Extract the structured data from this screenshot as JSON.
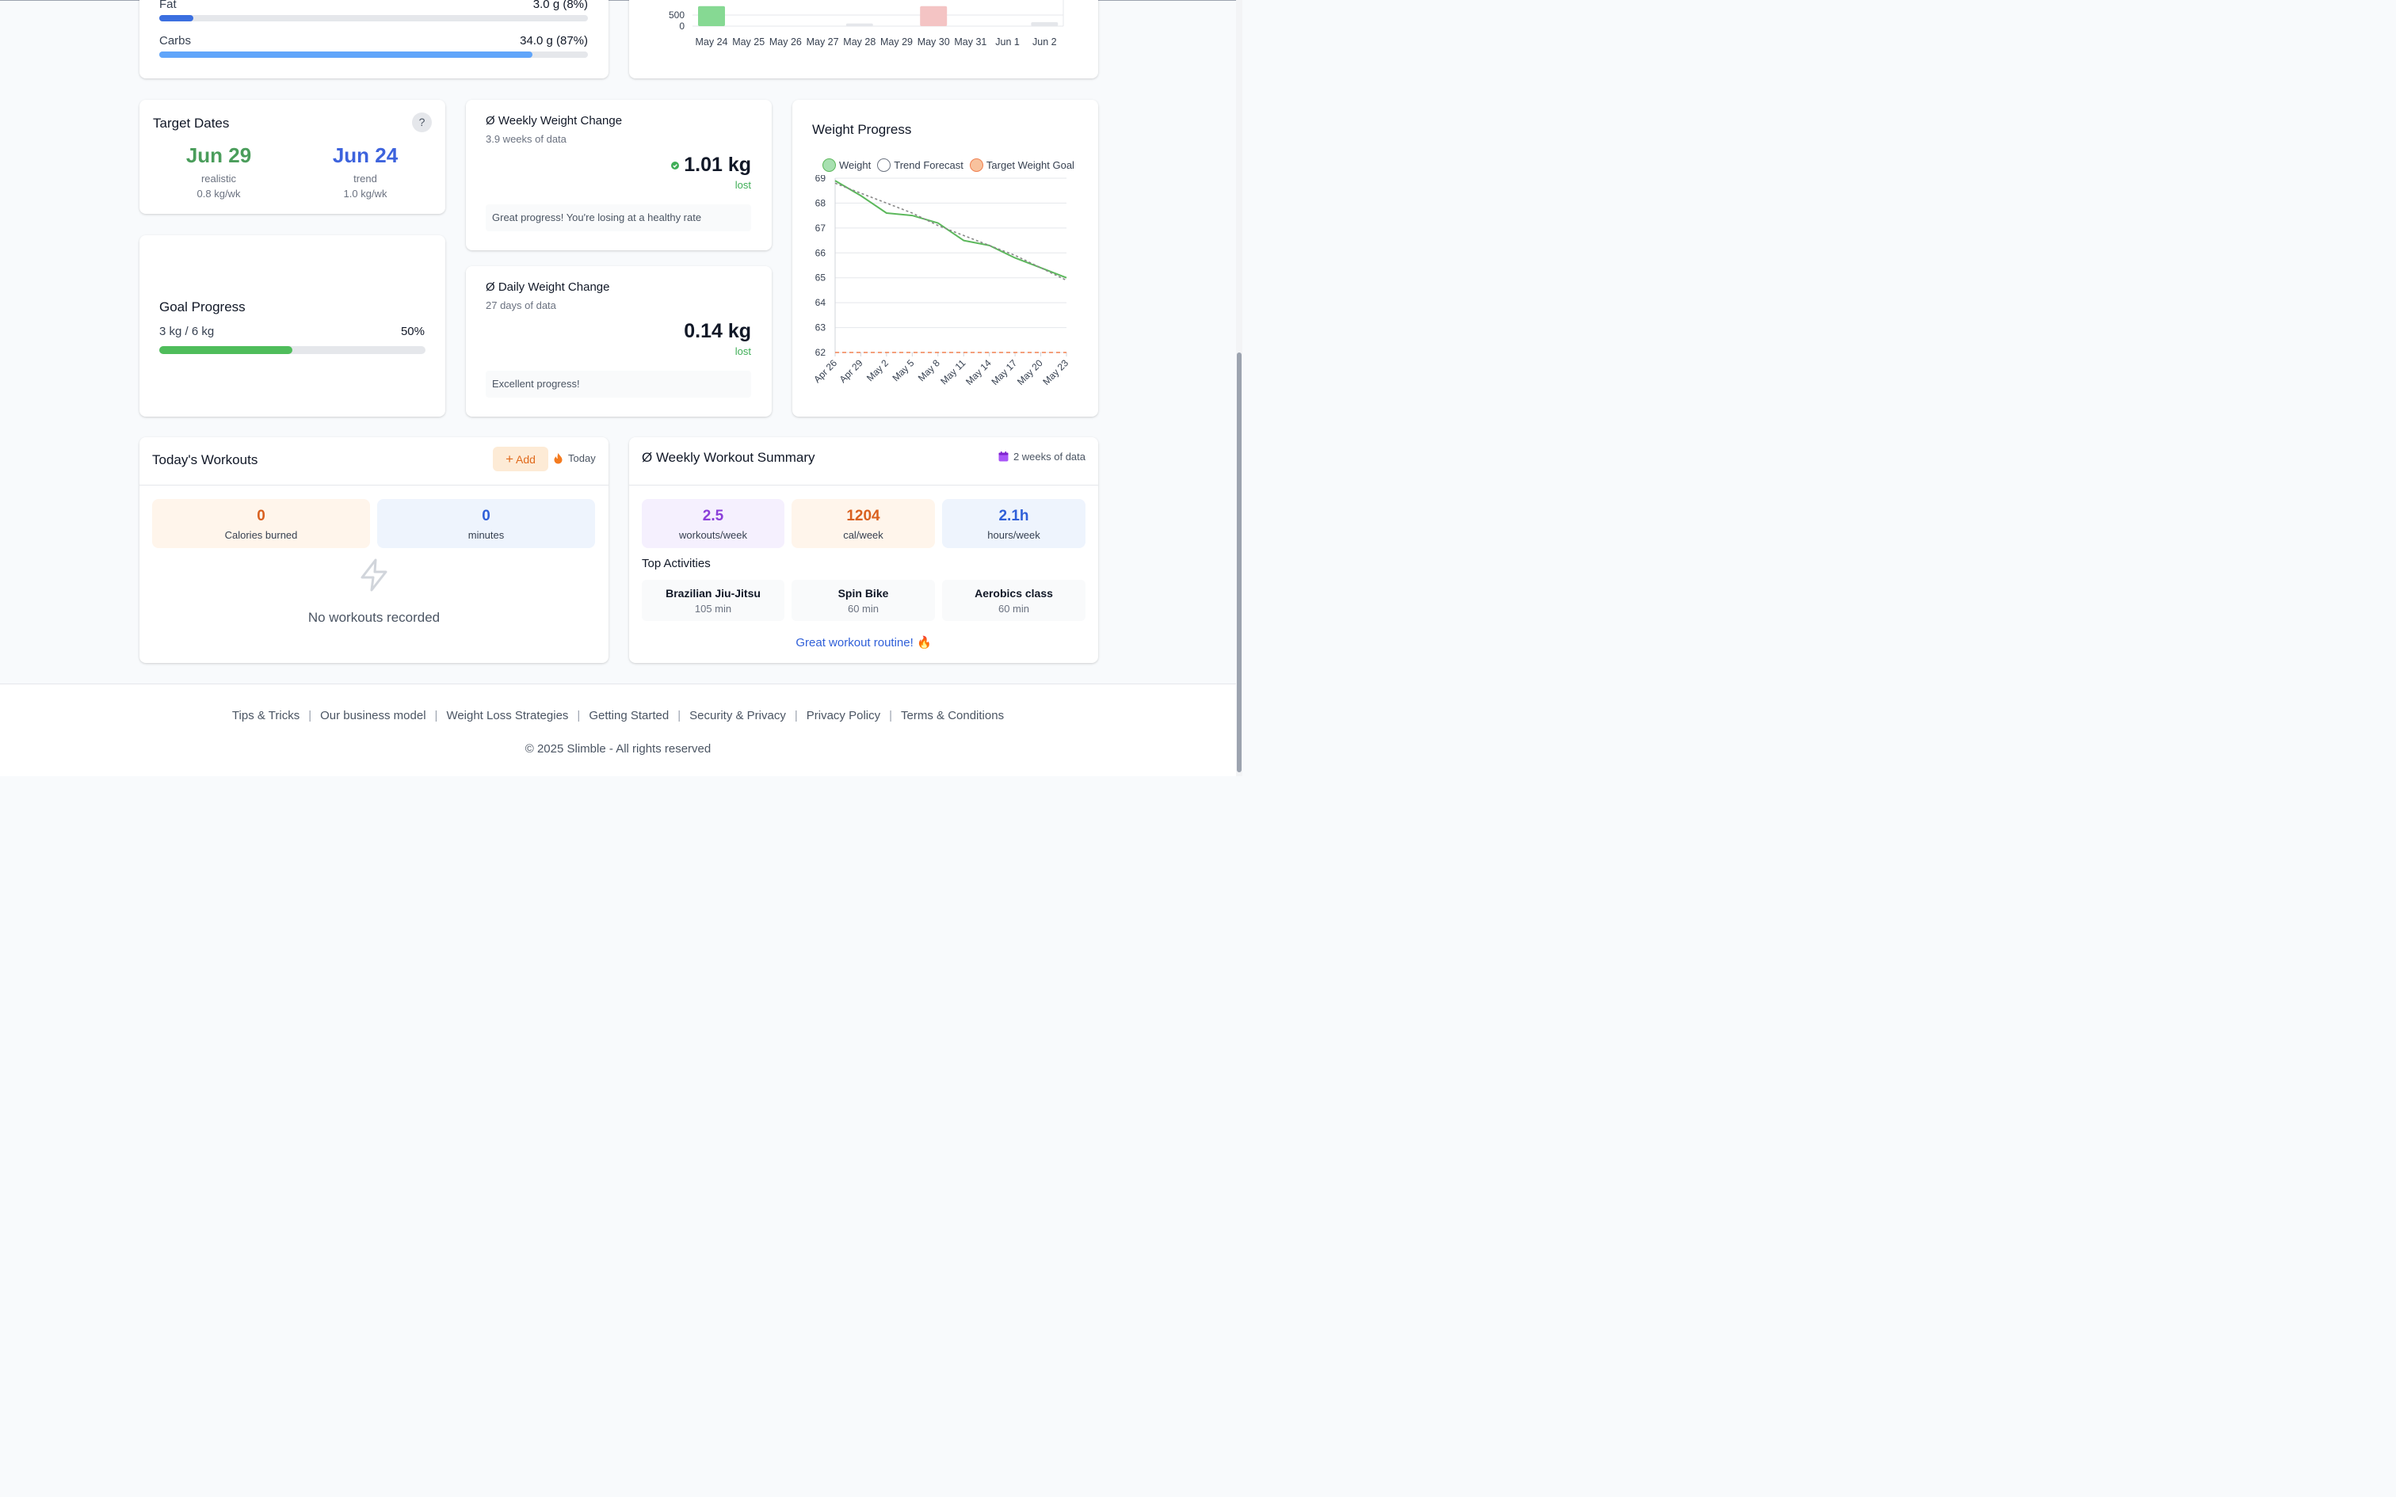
{
  "macros": {
    "fat": {
      "label": "Fat",
      "value": "3.0 g (8%)",
      "percent": 8,
      "color": "#3b6fe0"
    },
    "carbs": {
      "label": "Carbs",
      "value": "34.0 g (87%)",
      "percent": 87,
      "color": "#60a5fa"
    }
  },
  "calorie_chart": {
    "chart_data": {
      "type": "bar",
      "categories": [
        "May 24",
        "May 25",
        "May 26",
        "May 27",
        "May 28",
        "May 29",
        "May 30",
        "May 31",
        "Jun 1",
        "Jun 2"
      ],
      "values": [
        900,
        0,
        0,
        0,
        120,
        0,
        900,
        0,
        0,
        180
      ],
      "visible_ytick_labels": [
        "500",
        "0"
      ],
      "bar_colors": [
        "#86d993",
        null,
        null,
        null,
        "#e5e7eb",
        null,
        "#f4c4c4",
        null,
        null,
        "#e5e7eb"
      ]
    }
  },
  "target_dates": {
    "title": "Target Dates",
    "help": "?",
    "realistic": {
      "date": "Jun 29",
      "label": "realistic",
      "rate": "0.8 kg/wk",
      "color": "#4a9d5b"
    },
    "trend": {
      "date": "Jun 24",
      "label": "trend",
      "rate": "1.0 kg/wk",
      "color": "#3d63dd"
    }
  },
  "weekly_change": {
    "title": "Ø Weekly Weight Change",
    "subtitle": "3.9 weeks of data",
    "value": "1.01 kg",
    "direction": "lost",
    "message": "Great progress! You're losing at a healthy rate"
  },
  "daily_change": {
    "title": "Ø Daily Weight Change",
    "subtitle": "27 days of data",
    "value": "0.14 kg",
    "direction": "lost",
    "message": "Excellent progress!"
  },
  "goal_progress": {
    "title": "Goal Progress",
    "amount": "3 kg / 6 kg",
    "percent_label": "50%",
    "percent": 50
  },
  "weight_progress": {
    "title": "Weight Progress",
    "legend": {
      "weight": "Weight",
      "trend": "Trend Forecast",
      "target": "Target Weight Goal"
    },
    "colors": {
      "weight": "#5cb85c",
      "trend": "#888888",
      "target": "#f08050"
    },
    "chart_data": {
      "type": "line",
      "x": [
        "Apr 26",
        "Apr 29",
        "May 2",
        "May 5",
        "May 8",
        "May 11",
        "May 14",
        "May 17",
        "May 20",
        "May 23"
      ],
      "series": [
        {
          "name": "Weight",
          "values": [
            68.9,
            68.3,
            67.6,
            67.5,
            67.2,
            66.5,
            66.3,
            65.8,
            65.4,
            65.0
          ]
        },
        {
          "name": "Trend Forecast",
          "values": [
            68.8,
            68.4,
            68.0,
            67.6,
            67.1,
            66.7,
            66.3,
            65.9,
            65.4,
            64.9
          ]
        },
        {
          "name": "Target Weight Goal",
          "values": [
            62,
            62,
            62,
            62,
            62,
            62,
            62,
            62,
            62,
            62
          ]
        }
      ],
      "yticks": [
        69,
        68,
        67,
        66,
        65,
        64,
        63,
        62
      ],
      "ylim": [
        62,
        69
      ]
    }
  },
  "todays_workouts": {
    "title": "Today's Workouts",
    "add_label": "Add",
    "today_label": "Today",
    "calories_value": "0",
    "calories_label": "Calories burned",
    "minutes_value": "0",
    "minutes_label": "minutes",
    "empty_text": "No workouts recorded"
  },
  "weekly_summary": {
    "title": "Ø Weekly Workout Summary",
    "data_label": "2 weeks of data",
    "stats": [
      {
        "value": "2.5",
        "label": "workouts/week",
        "color": "#8b3fd9"
      },
      {
        "value": "1204",
        "label": "cal/week",
        "color": "#d9601f"
      },
      {
        "value": "2.1h",
        "label": "hours/week",
        "color": "#2f5fd8"
      }
    ],
    "top_title": "Top Activities",
    "activities": [
      {
        "name": "Brazilian Jiu-Jitsu",
        "minutes": "105 min"
      },
      {
        "name": "Spin Bike",
        "minutes": "60 min"
      },
      {
        "name": "Aerobics class",
        "minutes": "60 min"
      }
    ],
    "cta": "Great workout routine! 🔥"
  },
  "footer": {
    "links": [
      "Tips & Tricks",
      "Our business model",
      "Weight Loss Strategies",
      "Getting Started",
      "Security & Privacy",
      "Privacy Policy",
      "Terms & Conditions"
    ],
    "copyright": "© 2025 Slimble - All rights reserved"
  }
}
